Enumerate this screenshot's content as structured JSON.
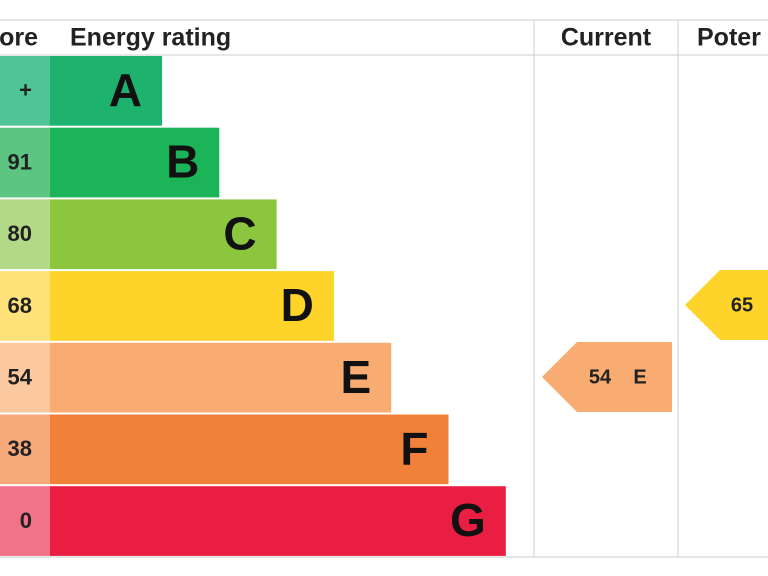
{
  "header": {
    "score": "ore",
    "rating": "Energy rating",
    "current": "Current",
    "potential": "Poter"
  },
  "bands": [
    {
      "score": "+",
      "letter": "A",
      "color": "#1db36f",
      "score_color": "#4fc495"
    },
    {
      "score": "91",
      "letter": "B",
      "color": "#1cb459",
      "score_color": "#5cc582"
    },
    {
      "score": "80",
      "letter": "C",
      "color": "#8cc63f",
      "score_color": "#b2d985"
    },
    {
      "score": "68",
      "letter": "D",
      "color": "#ffd42a",
      "score_color": "#ffe27a"
    },
    {
      "score": "54",
      "letter": "E",
      "color": "#f9ac72",
      "score_color": "#fbc8a0"
    },
    {
      "score": "38",
      "letter": "F",
      "color": "#f18038",
      "score_color": "#f6aa7c"
    },
    {
      "score": "0",
      "letter": "G",
      "color": "#ea1d42",
      "score_color": "#f27389"
    }
  ],
  "current": {
    "value": 54,
    "letter": "E"
  },
  "potential": {
    "value": 65
  }
}
